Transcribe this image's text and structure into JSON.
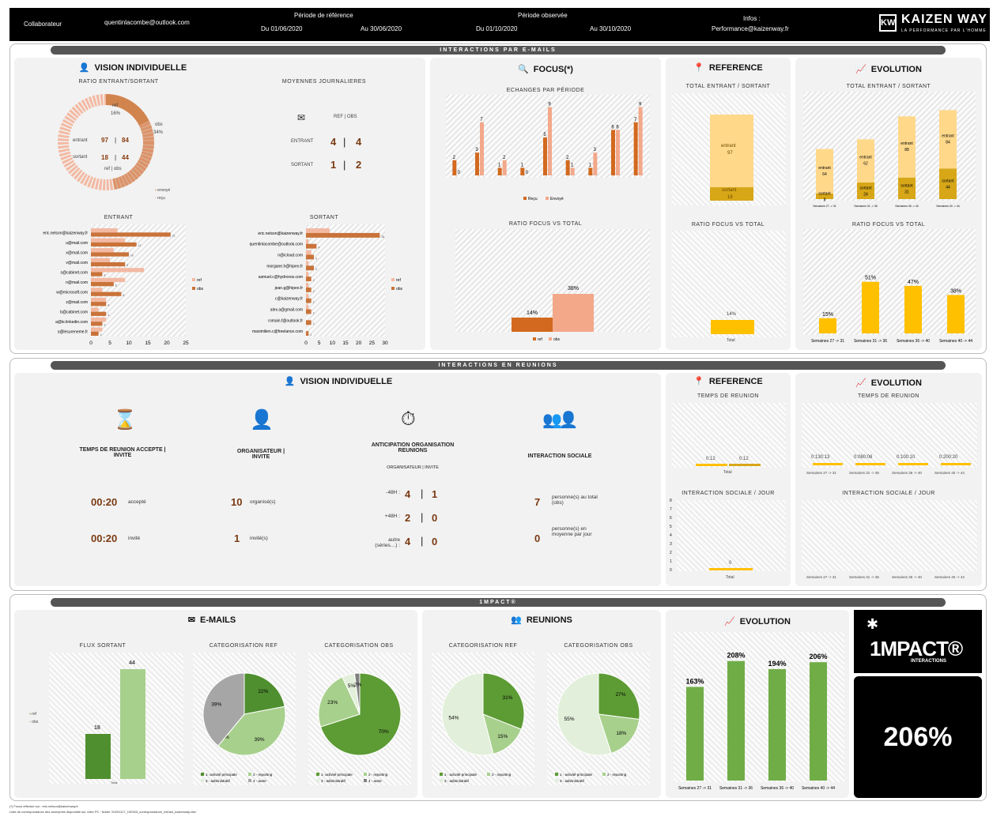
{
  "header": {
    "collab_label": "Collaborateur",
    "email": "quentinlacombe@outlook.com",
    "ref_period_label": "Période de référence",
    "ref_from": "Du  01/06/2020",
    "ref_to": "Au  30/06/2020",
    "obs_period_label": "Période observée",
    "obs_from": "Du  01/10/2020",
    "obs_to": "Au  30/10/2020",
    "infos_label": "Infos :",
    "infos_email": "Performance@kaizenway.fr",
    "logo_mark": "KW",
    "logo_name": "KAIZEN WAY",
    "logo_tagline": "LA PERFORMANCE PAR L'HOMME"
  },
  "emails": {
    "bar_title": "INTERACTIONS PAR E-MAILS",
    "individual": {
      "title": "VISION INDIVIDUELLE",
      "ratio_title": "RATIO ENTRANT/SORTANT",
      "donut": {
        "ref_label": "ref",
        "ref_pct": "16%",
        "obs_label": "obs",
        "obs_pct": "34%",
        "entrant_label": "entrant",
        "entrant_ref": "97",
        "entrant_obs": "84",
        "sortant_label": "sortant",
        "sortant_ref": "18",
        "sortant_obs": "44",
        "refobs": "ref | obs",
        "legend_sent": "envoyé",
        "legend_recv": "reçu"
      },
      "daily_title": "MOYENNES JOURNALIERES",
      "daily_header": "REF | OBS",
      "daily_in_label": "ENTRANT",
      "daily_in_ref": "4",
      "daily_in_obs": "4",
      "daily_out_label": "SORTANT",
      "daily_out_ref": "1",
      "daily_out_obs": "2",
      "in_title": "ENTRANT",
      "out_title": "SORTANT",
      "in_rows": [
        {
          "name": "eric.nelson@kaizenway.fr",
          "ref": 7,
          "obs": 21
        },
        {
          "name": "u@mail.com",
          "ref": 9,
          "obs": 12
        },
        {
          "name": "x@mail.com",
          "ref": 6,
          "obs": 10
        },
        {
          "name": "v@mail.com",
          "ref": 5,
          "obs": 9
        },
        {
          "name": "s@cabinet.com",
          "ref": 14,
          "obs": 3
        },
        {
          "name": "n@mail.com",
          "ref": 9,
          "obs": 6
        },
        {
          "name": "w@microsoft.com",
          "ref": 3,
          "obs": 8
        },
        {
          "name": "z@mail.com",
          "ref": 4,
          "obs": 4
        },
        {
          "name": "b@cabinet.com",
          "ref": 2,
          "obs": 4
        },
        {
          "name": "a@le.linkedin.com",
          "ref": 4,
          "obs": 3
        },
        {
          "name": "s@lesureneme.fr",
          "ref": 3,
          "obs": 2
        }
      ],
      "out_rows": [
        {
          "name": "eric.nelson@kaizenway.fr",
          "ref": 9,
          "obs": 28
        },
        {
          "name": "quentinlacombe@outlook.com",
          "ref": 1,
          "obs": 4
        },
        {
          "name": "n@icloud.com",
          "ref": 2,
          "obs": 3
        },
        {
          "name": "morgane.h@hipeo.fr",
          "ref": 1,
          "obs": 3
        },
        {
          "name": "samuel.c@hydroxos.com",
          "ref": 1,
          "obs": 2
        },
        {
          "name": "jean.g@hipeo.fr",
          "ref": 1,
          "obs": 2
        },
        {
          "name": "c@kaizenway.fr",
          "ref": 1,
          "obs": 2
        },
        {
          "name": "alex.a@gmail.com",
          "ref": 1,
          "obs": 2
        },
        {
          "name": "romain.f@outlook.fr",
          "ref": 0,
          "obs": 2
        },
        {
          "name": "maximilien.c@freelance.com",
          "ref": 0,
          "obs": 1
        }
      ],
      "legend_ref": "ref",
      "legend_obs": "obs",
      "in_axis": [
        "0",
        "5",
        "10",
        "15",
        "20",
        "25"
      ],
      "out_axis": [
        "0",
        "5",
        "10",
        "15",
        "20",
        "25",
        "30"
      ]
    },
    "focus": {
      "title": "FOCUS(*)",
      "exchanges_title": "ECHANGES PAR PÉRIODE",
      "legend_recv": "Reçu",
      "legend_sent": "Envoyé",
      "ratio_title": "RATIO FOCUS VS TOTAL",
      "ratio_ref": "14%",
      "ratio_obs": "38%",
      "legend_ref": "ref",
      "legend_obs": "obs"
    },
    "reference": {
      "title": "REFERENCE",
      "total_title": "TOTAL ENTRANT / SORTANT",
      "entrant_label": "entrant",
      "entrant_val": "97",
      "sortant_label": "sortant",
      "sortant_val": "18",
      "ratio_title": "RATIO FOCUS VS TOTAL",
      "ratio_val": "14%",
      "ratio_xlabel": "Total"
    },
    "evolution": {
      "title": "EVOLUTION",
      "total_title": "TOTAL ENTRANT / SORTANT",
      "ratio_title": "RATIO FOCUS VS TOTAL",
      "weeks": [
        "Semaines 27 -> 31",
        "Semaines 31 -> 36",
        "Semaines 36 -> 40",
        "Semaines 40 -> 44"
      ],
      "entrant": [
        "64",
        "62",
        "88",
        "84"
      ],
      "sortant": [
        "8",
        "24",
        "31",
        "44"
      ],
      "ratio": [
        "15%",
        "51%",
        "47%",
        "38%"
      ],
      "entrant_label": "entrant",
      "sortant_label": "sortant"
    }
  },
  "meetings": {
    "bar_title": "INTERACTIONS EN REUNIONS",
    "title": "VISION INDIVIDUELLE",
    "time_title": "TEMPS DE REUNION ACCEPTE | INVITE",
    "time_accepted": "00:20",
    "time_accepted_lbl": "accepté",
    "time_invited": "00:20",
    "time_invited_lbl": "invité",
    "org_title": "ORGANISATEUR | INVITE",
    "org_count": "10",
    "org_lbl": "organisé(s)",
    "inv_count": "1",
    "inv_lbl": "invité(s)",
    "antic_title": "ANTICIPATION ORGANISATION REUNIONS",
    "antic_sub": "ORGANISATEUR | INVITE",
    "antic_rows": [
      {
        "label": "-48H :",
        "a": "4",
        "b": "1"
      },
      {
        "label": "+48H :",
        "a": "2",
        "b": "0"
      },
      {
        "label": "autre (séries…) :",
        "a": "4",
        "b": "0"
      }
    ],
    "social_title": "INTERACTION SOCIALE",
    "social_total": "7",
    "social_total_lbl": "personne(s) au total (obs)",
    "social_avg": "0",
    "social_avg_lbl": "personne(s) en moyenne par jour",
    "ref_title": "REFERENCE",
    "ref_time_title": "TEMPS DE REUNION",
    "ref_time_a": "0:12",
    "ref_time_b": "0:12",
    "ref_time_x": "Total",
    "ref_social_title": "INTERACTION SOCIALE / JOUR",
    "ref_social_val": "0",
    "ref_social_x": "Total",
    "ref_social_axis": [
      "8",
      "7",
      "6",
      "5",
      "4",
      "3",
      "2",
      "1",
      "0"
    ],
    "evo_title": "EVOLUTION",
    "evo_time_title": "TEMPS DE REUNION",
    "evo_time": [
      "0:130:13",
      "0:080:08",
      "0:100:10",
      "0:200:20"
    ],
    "evo_social_title": "INTERACTION SOCIALE / JOUR",
    "evo_social": [
      "0",
      "0",
      "0",
      "0"
    ]
  },
  "impact": {
    "bar_title": "1MPACT®",
    "emails_title": "E-MAILS",
    "flux_title": "FLUX SORTANT",
    "flux_ref": "18",
    "flux_obs": "44",
    "legend_ref": "ref",
    "legend_obs": "obs",
    "flux_x": "Total",
    "cat_ref_title": "CATEGORISATION REF",
    "cat_obs_title": "CATEGORISATION OBS",
    "email_ref_pcts": [
      "22%",
      "39%",
      "0%",
      "39%"
    ],
    "email_obs_pcts": [
      "70%",
      "23%",
      "5%",
      "2%"
    ],
    "email_legend": [
      "1- activité principale",
      "2 - reporting",
      "3 - administratif",
      "4 - autre"
    ],
    "meet_title": "REUNIONS",
    "meet_ref_pcts": [
      "31%",
      "15%",
      "54%"
    ],
    "meet_obs_pcts": [
      "27%",
      "18%",
      "55%"
    ],
    "meet_legend": [
      "1 - activité principale",
      "2 - reporting",
      "3 - administratif"
    ],
    "evo_title": "EVOLUTION",
    "evo_vals": [
      "163%",
      "208%",
      "194%",
      "206%"
    ],
    "logo_text": "1MPACT®",
    "logo_sub": "INTERACTIONS",
    "score": "206%"
  },
  "footer": {
    "line1": "(*) Focus effectué sur : eric.nelson@kaizenway.fr",
    "line2": "Liste de correspondance des anonymes disponible sur votre PC : fichier '20201117_130303_correspondance_extract_kaizenway.xlsx'"
  }
}
